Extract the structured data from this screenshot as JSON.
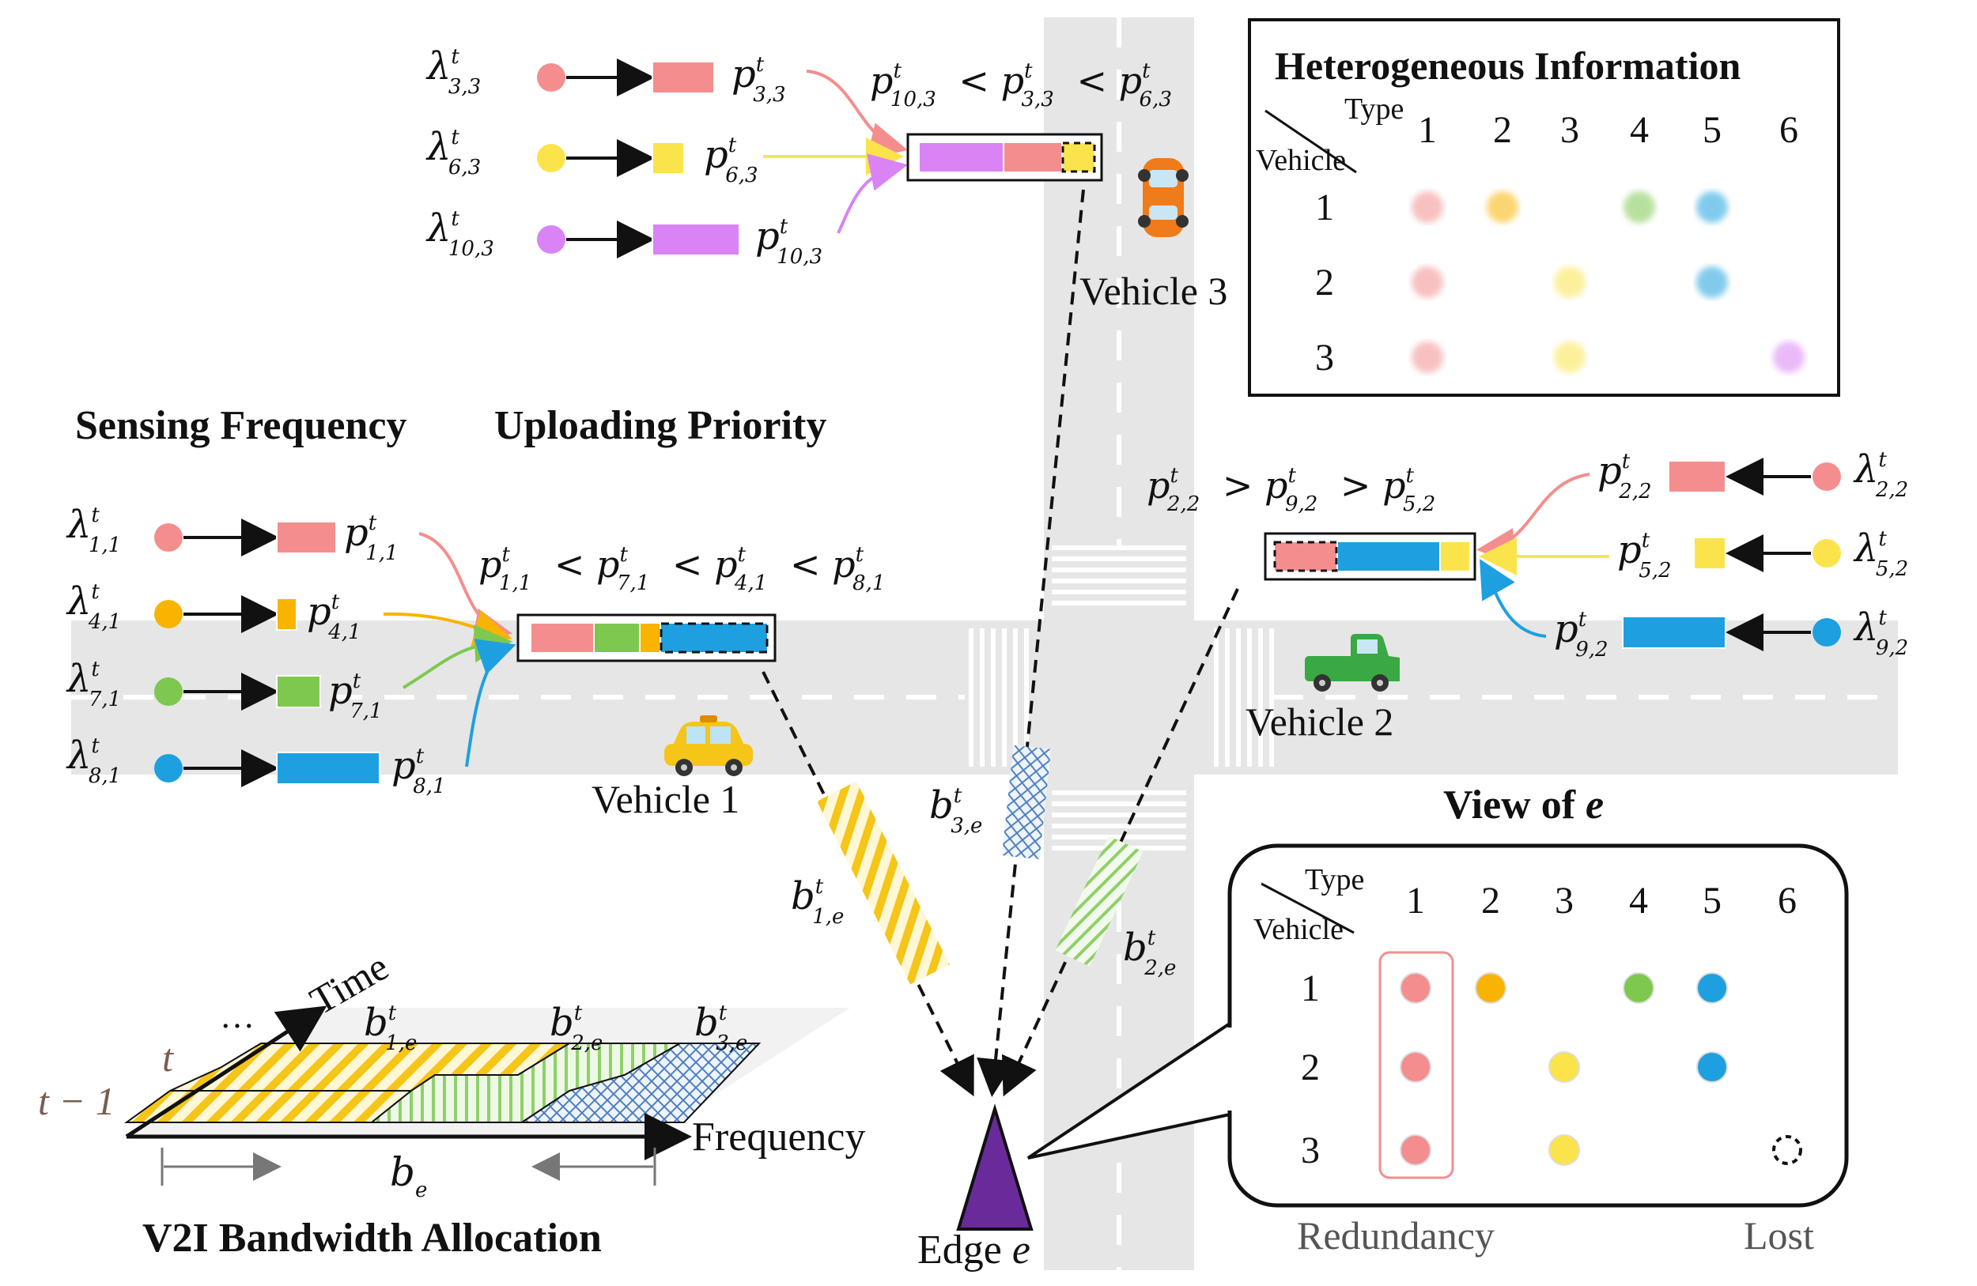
{
  "colors": {
    "pink": "#f48e8e",
    "yellow": "#fbe44b",
    "orange": "#f8b400",
    "green": "#7ec850",
    "blue": "#1ea0e0",
    "purple": "#d983f4",
    "road": "#e6e6e6",
    "edge_purple": "#6a2b9a"
  },
  "headings": {
    "sensing_frequency": "Sensing Frequency",
    "uploading_priority": "Uploading Priority",
    "bandwidth_allocation": "V2I Bandwidth Allocation",
    "view_of": "View of ",
    "view_of_var": "e"
  },
  "vehicles": {
    "v1": "Vehicle 1",
    "v2": "Vehicle 2",
    "v3": "Vehicle 3"
  },
  "edge": {
    "label": "Edge ",
    "var": "e"
  },
  "priorities": {
    "v1": "pᵗ₁,₁ < pᵗ₇,₁ < pᵗ₄,₁ < pᵗ₈,₁",
    "v2": "pᵗ₂,₂ > pᵗ₉,₂ > pᵗ₅,₂",
    "v3": "pᵗ₁₀,₃ < pᵗ₃,₃ < pᵗ₆,₃"
  },
  "v1_streams": [
    {
      "lambda": "λ",
      "lsub": "1,1",
      "p": "p",
      "psub": "1,1",
      "color": "pink"
    },
    {
      "lambda": "λ",
      "lsub": "4,1",
      "p": "p",
      "psub": "4,1",
      "color": "orange"
    },
    {
      "lambda": "λ",
      "lsub": "7,1",
      "p": "p",
      "psub": "7,1",
      "color": "green"
    },
    {
      "lambda": "λ",
      "lsub": "8,1",
      "p": "p",
      "psub": "8,1",
      "color": "blue"
    }
  ],
  "v2_streams": [
    {
      "lsub": "2,2",
      "psub": "2,2",
      "color": "pink"
    },
    {
      "lsub": "5,2",
      "psub": "5,2",
      "color": "yellow"
    },
    {
      "lsub": "9,2",
      "psub": "9,2",
      "color": "blue"
    }
  ],
  "v3_streams": [
    {
      "lsub": "3,3",
      "psub": "3,3",
      "color": "pink"
    },
    {
      "lsub": "6,3",
      "psub": "6,3",
      "color": "yellow"
    },
    {
      "lsub": "10,3",
      "psub": "10,3",
      "color": "purple"
    }
  ],
  "bandwidth_labels": {
    "b1": "1,e",
    "b2": "2,e",
    "b3": "3,e",
    "be": "b",
    "be_sub": "e",
    "time": "Time",
    "frequency": "Frequency",
    "t": "t",
    "t_minus_1": "t − 1",
    "dots": "…"
  },
  "hetero_table": {
    "title": "Heterogeneous Information",
    "type_label": "Type",
    "vehicle_label": "Vehicle",
    "columns": [
      "1",
      "2",
      "3",
      "4",
      "5",
      "6"
    ],
    "rows": [
      "1",
      "2",
      "3"
    ],
    "cells": [
      [
        "pink",
        "orange",
        null,
        "green",
        "blue",
        null
      ],
      [
        "pink",
        null,
        "yellow",
        null,
        "blue",
        null
      ],
      [
        "pink",
        null,
        "yellow",
        null,
        null,
        "purple"
      ]
    ]
  },
  "view_table": {
    "type_label": "Type",
    "vehicle_label": "Vehicle",
    "columns": [
      "1",
      "2",
      "3",
      "4",
      "5",
      "6"
    ],
    "rows": [
      "1",
      "2",
      "3"
    ],
    "cells": [
      [
        "pink",
        "orange",
        null,
        "green",
        "blue",
        null
      ],
      [
        "pink",
        null,
        "yellow",
        null,
        "blue",
        null
      ],
      [
        "pink",
        null,
        "yellow",
        null,
        null,
        "lost"
      ]
    ],
    "redundancy_label": "Redundancy",
    "lost_label": "Lost"
  }
}
